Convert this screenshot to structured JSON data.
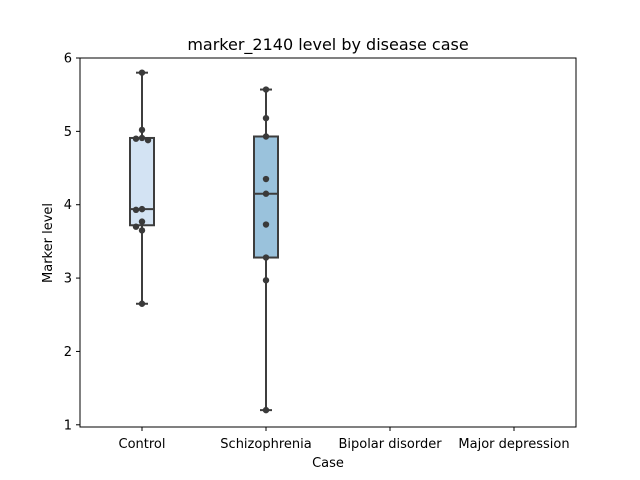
{
  "chart_data": {
    "type": "box",
    "title": "marker_2140 level by disease case",
    "xlabel": "Case",
    "ylabel": "Marker level",
    "ylim": [
      0.97,
      6.0
    ],
    "yticks": [
      "1",
      "2",
      "3",
      "4",
      "5",
      "6"
    ],
    "grid": false,
    "legend": "none",
    "categories": [
      "Control",
      "Schizophrenia",
      "Bipolar disorder",
      "Major depression"
    ],
    "colors": {
      "Control": "#d3e3f3",
      "Schizophrenia": "#9ac2dc",
      "line": "#3d3d3d",
      "points": "#3a3a3a"
    },
    "boxes": [
      {
        "category": "Control",
        "whisker_low": 2.65,
        "q1": 3.72,
        "median": 3.94,
        "q3": 4.91,
        "whisker_high": 5.8,
        "points": [
          5.8,
          5.02,
          4.91,
          4.9,
          4.88,
          3.94,
          3.93,
          3.77,
          3.7,
          3.65,
          2.65
        ]
      },
      {
        "category": "Schizophrenia",
        "whisker_low": 1.2,
        "q1": 3.28,
        "median": 4.15,
        "q3": 4.93,
        "whisker_high": 5.57,
        "points": [
          5.57,
          5.18,
          4.93,
          4.35,
          4.15,
          3.73,
          3.28,
          2.97,
          1.2
        ]
      },
      {
        "category": "Bipolar disorder",
        "points": []
      },
      {
        "category": "Major depression",
        "points": []
      }
    ]
  }
}
